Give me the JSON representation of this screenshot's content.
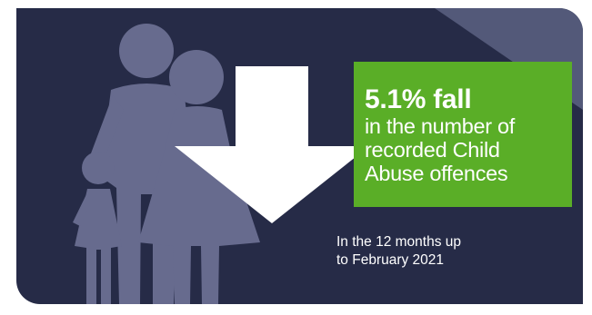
{
  "callout": {
    "headline": "5.1% fall",
    "lines": [
      "in the number of",
      "recorded Child",
      "Abuse offences"
    ]
  },
  "caption": {
    "lines": [
      "In the 12 months up",
      "to February 2021"
    ]
  },
  "icons": [
    "family-icon",
    "down-arrow-icon"
  ],
  "colors": {
    "background": "#262b47",
    "corner_accent": "#535979",
    "silhouette": "#676b8e",
    "arrow": "#ffffff",
    "callout": "#5aae27",
    "text": "#ffffff"
  }
}
